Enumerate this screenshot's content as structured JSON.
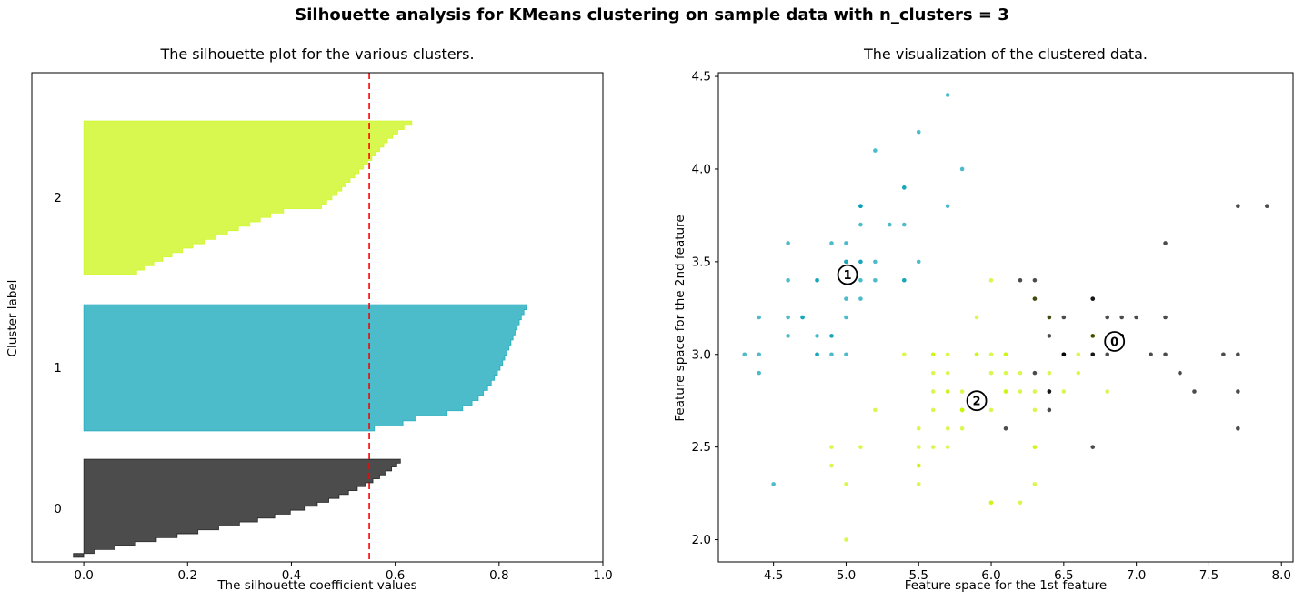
{
  "figure": {
    "suptitle": "Silhouette analysis for KMeans clustering on sample data with n_clusters = 3",
    "background": "#ffffff",
    "n_clusters": 3
  },
  "chart_data": [
    {
      "type": "area",
      "subtype": "silhouette_plot",
      "title": "The silhouette plot for the various clusters.",
      "xlabel": "The silhouette coefficient values",
      "ylabel": "Cluster label",
      "xlim": [
        -0.1,
        1.0
      ],
      "xticks": [
        0.0,
        0.2,
        0.4,
        0.6,
        0.8,
        1.0
      ],
      "yticks": [],
      "grid": false,
      "average_silhouette_score": 0.55,
      "average_line": {
        "color": "#ff0000",
        "style": "dashed"
      },
      "fill_alpha": 0.7,
      "clusters": [
        {
          "label": "2",
          "size": 62,
          "base_color": "#C7F504",
          "band_frac": [
            0.0985,
            0.4126
          ],
          "label_y_frac": 0.2546,
          "silhouette_values_sorted": [
            0.102,
            0.118,
            0.135,
            0.152,
            0.17,
            0.19,
            0.21,
            0.232,
            0.255,
            0.277,
            0.298,
            0.32,
            0.34,
            0.36,
            0.385,
            0.458,
            0.468,
            0.478,
            0.488,
            0.497,
            0.505,
            0.513,
            0.522,
            0.53,
            0.539,
            0.547,
            0.555,
            0.562,
            0.57,
            0.578,
            0.585,
            0.595,
            0.605,
            0.617,
            0.632
          ]
        },
        {
          "label": "1",
          "size": 50,
          "base_color": "#009FB3",
          "band_frac": [
            0.474,
            0.7323
          ],
          "label_y_frac": 0.6022,
          "silhouette_values_sorted": [
            0.56,
            0.615,
            0.64,
            0.7,
            0.73,
            0.748,
            0.76,
            0.77,
            0.778,
            0.785,
            0.791,
            0.797,
            0.802,
            0.807,
            0.811,
            0.815,
            0.819,
            0.823,
            0.827,
            0.831,
            0.835,
            0.839,
            0.843,
            0.848,
            0.853
          ]
        },
        {
          "label": "0",
          "size": 38,
          "base_color": "#000000",
          "band_frac": [
            0.79,
            0.9907
          ],
          "label_y_frac": 0.8903,
          "silhouette_values_sorted": [
            -0.02,
            0.02,
            0.06,
            0.1,
            0.14,
            0.18,
            0.22,
            0.26,
            0.3,
            0.335,
            0.368,
            0.398,
            0.425,
            0.45,
            0.472,
            0.492,
            0.51,
            0.527,
            0.543,
            0.557,
            0.57,
            0.582,
            0.593,
            0.603,
            0.61
          ]
        }
      ]
    },
    {
      "type": "scatter",
      "title": "The visualization of the clustered data.",
      "xlabel": "Feature space for the 1st feature",
      "ylabel": "Feature space for the 2nd feature",
      "xlim": [
        4.12,
        8.08
      ],
      "ylim": [
        1.88,
        4.52
      ],
      "xticks": [
        4.5,
        5.0,
        5.5,
        6.0,
        6.5,
        7.0,
        7.5,
        8.0
      ],
      "yticks": [
        2.0,
        2.5,
        3.0,
        3.5,
        4.0,
        4.5
      ],
      "grid": false,
      "point_alpha": 0.7,
      "cluster_colors": {
        "0": "#000000",
        "1": "#009FB3",
        "2": "#C7F504"
      },
      "centers": [
        {
          "label": "0",
          "x": 6.85,
          "y": 3.07
        },
        {
          "label": "1",
          "x": 5.01,
          "y": 3.43
        },
        {
          "label": "2",
          "x": 5.9,
          "y": 2.75
        }
      ],
      "points": [
        [
          5.1,
          3.5,
          1
        ],
        [
          4.9,
          3.0,
          1
        ],
        [
          4.7,
          3.2,
          1
        ],
        [
          4.6,
          3.1,
          1
        ],
        [
          5.0,
          3.6,
          1
        ],
        [
          5.4,
          3.9,
          1
        ],
        [
          4.6,
          3.4,
          1
        ],
        [
          5.0,
          3.4,
          1
        ],
        [
          4.4,
          2.9,
          1
        ],
        [
          4.9,
          3.1,
          1
        ],
        [
          5.4,
          3.7,
          1
        ],
        [
          4.8,
          3.4,
          1
        ],
        [
          4.8,
          3.0,
          1
        ],
        [
          4.3,
          3.0,
          1
        ],
        [
          5.8,
          4.0,
          1
        ],
        [
          5.7,
          4.4,
          1
        ],
        [
          5.4,
          3.9,
          1
        ],
        [
          5.1,
          3.5,
          1
        ],
        [
          5.7,
          3.8,
          1
        ],
        [
          5.1,
          3.8,
          1
        ],
        [
          5.4,
          3.4,
          1
        ],
        [
          5.1,
          3.7,
          1
        ],
        [
          4.6,
          3.6,
          1
        ],
        [
          5.1,
          3.3,
          1
        ],
        [
          4.8,
          3.4,
          1
        ],
        [
          5.0,
          3.0,
          1
        ],
        [
          5.0,
          3.4,
          1
        ],
        [
          5.2,
          3.5,
          1
        ],
        [
          5.2,
          3.4,
          1
        ],
        [
          4.7,
          3.2,
          1
        ],
        [
          4.8,
          3.1,
          1
        ],
        [
          5.4,
          3.4,
          1
        ],
        [
          5.2,
          4.1,
          1
        ],
        [
          5.5,
          4.2,
          1
        ],
        [
          4.9,
          3.1,
          1
        ],
        [
          5.0,
          3.2,
          1
        ],
        [
          5.5,
          3.5,
          1
        ],
        [
          4.9,
          3.6,
          1
        ],
        [
          4.4,
          3.0,
          1
        ],
        [
          5.1,
          3.4,
          1
        ],
        [
          5.0,
          3.5,
          1
        ],
        [
          4.5,
          2.3,
          1
        ],
        [
          4.4,
          3.2,
          1
        ],
        [
          5.0,
          3.5,
          1
        ],
        [
          5.1,
          3.8,
          1
        ],
        [
          4.8,
          3.0,
          1
        ],
        [
          5.1,
          3.8,
          1
        ],
        [
          4.6,
          3.2,
          1
        ],
        [
          5.3,
          3.7,
          1
        ],
        [
          5.0,
          3.3,
          1
        ],
        [
          7.0,
          3.2,
          0
        ],
        [
          6.4,
          3.2,
          2
        ],
        [
          6.9,
          3.1,
          0
        ],
        [
          5.5,
          2.3,
          2
        ],
        [
          6.5,
          2.8,
          2
        ],
        [
          5.7,
          2.8,
          2
        ],
        [
          6.3,
          3.3,
          2
        ],
        [
          4.9,
          2.4,
          2
        ],
        [
          6.6,
          2.9,
          2
        ],
        [
          5.2,
          2.7,
          2
        ],
        [
          5.0,
          2.0,
          2
        ],
        [
          5.9,
          3.0,
          2
        ],
        [
          6.0,
          2.2,
          2
        ],
        [
          6.1,
          2.9,
          2
        ],
        [
          5.6,
          2.9,
          2
        ],
        [
          6.7,
          3.1,
          2
        ],
        [
          5.6,
          3.0,
          2
        ],
        [
          5.8,
          2.7,
          2
        ],
        [
          6.2,
          2.2,
          2
        ],
        [
          5.6,
          2.5,
          2
        ],
        [
          5.9,
          3.2,
          2
        ],
        [
          6.1,
          2.8,
          2
        ],
        [
          6.3,
          2.5,
          2
        ],
        [
          6.1,
          2.8,
          2
        ],
        [
          6.4,
          2.9,
          2
        ],
        [
          6.6,
          3.0,
          2
        ],
        [
          6.8,
          2.8,
          2
        ],
        [
          6.7,
          3.0,
          0
        ],
        [
          6.0,
          2.9,
          2
        ],
        [
          5.7,
          2.6,
          2
        ],
        [
          5.5,
          2.4,
          2
        ],
        [
          5.5,
          2.4,
          2
        ],
        [
          5.8,
          2.7,
          2
        ],
        [
          6.0,
          2.7,
          2
        ],
        [
          5.4,
          3.0,
          2
        ],
        [
          6.0,
          3.4,
          2
        ],
        [
          6.7,
          3.1,
          2
        ],
        [
          6.3,
          2.3,
          2
        ],
        [
          5.6,
          3.0,
          2
        ],
        [
          5.5,
          2.5,
          2
        ],
        [
          5.5,
          2.6,
          2
        ],
        [
          6.1,
          3.0,
          2
        ],
        [
          5.8,
          2.6,
          2
        ],
        [
          5.0,
          2.3,
          2
        ],
        [
          5.6,
          2.7,
          2
        ],
        [
          5.7,
          3.0,
          2
        ],
        [
          5.7,
          2.9,
          2
        ],
        [
          6.2,
          2.9,
          2
        ],
        [
          5.1,
          2.5,
          2
        ],
        [
          5.7,
          2.8,
          2
        ],
        [
          6.3,
          3.3,
          0
        ],
        [
          5.8,
          2.7,
          2
        ],
        [
          7.1,
          3.0,
          0
        ],
        [
          6.3,
          2.9,
          0
        ],
        [
          6.5,
          3.0,
          0
        ],
        [
          7.6,
          3.0,
          0
        ],
        [
          4.9,
          2.5,
          2
        ],
        [
          7.3,
          2.9,
          0
        ],
        [
          6.7,
          2.5,
          0
        ],
        [
          7.2,
          3.6,
          0
        ],
        [
          6.5,
          3.2,
          0
        ],
        [
          6.4,
          2.7,
          0
        ],
        [
          6.8,
          3.0,
          0
        ],
        [
          5.7,
          2.5,
          2
        ],
        [
          5.8,
          2.8,
          2
        ],
        [
          6.4,
          3.2,
          0
        ],
        [
          6.5,
          3.0,
          0
        ],
        [
          7.7,
          3.8,
          0
        ],
        [
          7.7,
          2.6,
          0
        ],
        [
          6.0,
          2.2,
          2
        ],
        [
          6.9,
          3.2,
          0
        ],
        [
          5.6,
          2.8,
          2
        ],
        [
          7.7,
          2.8,
          0
        ],
        [
          6.3,
          2.7,
          2
        ],
        [
          6.7,
          3.3,
          0
        ],
        [
          7.2,
          3.2,
          0
        ],
        [
          6.2,
          2.8,
          2
        ],
        [
          6.1,
          3.0,
          2
        ],
        [
          6.4,
          2.8,
          0
        ],
        [
          7.2,
          3.0,
          0
        ],
        [
          7.4,
          2.8,
          0
        ],
        [
          7.9,
          3.8,
          0
        ],
        [
          6.4,
          2.8,
          0
        ],
        [
          6.3,
          2.8,
          2
        ],
        [
          6.1,
          2.6,
          0
        ],
        [
          7.7,
          3.0,
          0
        ],
        [
          6.3,
          3.4,
          0
        ],
        [
          6.4,
          3.1,
          0
        ],
        [
          6.0,
          3.0,
          2
        ],
        [
          6.9,
          3.1,
          0
        ],
        [
          6.7,
          3.1,
          0
        ],
        [
          6.9,
          3.1,
          0
        ],
        [
          5.8,
          2.7,
          2
        ],
        [
          6.8,
          3.2,
          0
        ],
        [
          6.7,
          3.3,
          0
        ],
        [
          6.7,
          3.0,
          0
        ],
        [
          6.3,
          2.5,
          2
        ],
        [
          6.5,
          3.0,
          0
        ],
        [
          6.2,
          3.4,
          0
        ],
        [
          5.9,
          3.0,
          2
        ]
      ]
    }
  ]
}
